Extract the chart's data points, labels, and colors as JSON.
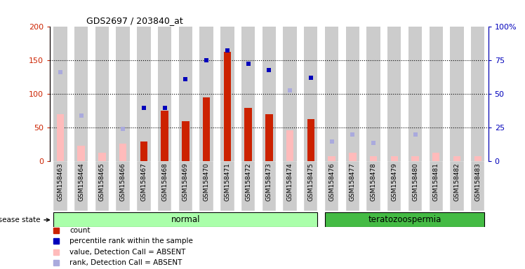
{
  "title": "GDS2697 / 203840_at",
  "samples": [
    "GSM158463",
    "GSM158464",
    "GSM158465",
    "GSM158466",
    "GSM158467",
    "GSM158468",
    "GSM158469",
    "GSM158470",
    "GSM158471",
    "GSM158472",
    "GSM158473",
    "GSM158474",
    "GSM158475",
    "GSM158476",
    "GSM158477",
    "GSM158478",
    "GSM158479",
    "GSM158480",
    "GSM158481",
    "GSM158482",
    "GSM158483"
  ],
  "count": [
    null,
    null,
    null,
    null,
    30,
    75,
    60,
    95,
    163,
    80,
    70,
    null,
    63,
    null,
    null,
    null,
    null,
    null,
    null,
    null,
    null
  ],
  "value_absent": [
    70,
    23,
    13,
    26,
    null,
    null,
    null,
    null,
    null,
    null,
    null,
    46,
    null,
    8,
    13,
    8,
    8,
    8,
    13,
    8,
    8
  ],
  "rank_present": [
    null,
    null,
    null,
    null,
    80,
    80,
    122,
    150,
    165,
    145,
    136,
    null,
    124,
    null,
    null,
    null,
    null,
    null,
    null,
    null,
    null
  ],
  "rank_absent": [
    133,
    68,
    null,
    48,
    null,
    null,
    null,
    null,
    null,
    null,
    null,
    106,
    null,
    30,
    40,
    28,
    null,
    40,
    null,
    null,
    null
  ],
  "disease_state": [
    "normal",
    "normal",
    "normal",
    "normal",
    "normal",
    "normal",
    "normal",
    "normal",
    "normal",
    "normal",
    "normal",
    "normal",
    "normal",
    "teratozoospermia",
    "teratozoospermia",
    "teratozoospermia",
    "teratozoospermia",
    "teratozoospermia",
    "teratozoospermia",
    "teratozoospermia",
    "teratozoospermia"
  ],
  "ylim_left": [
    0,
    200
  ],
  "ylim_right": [
    0,
    100
  ],
  "yticks_left": [
    0,
    50,
    100,
    150,
    200
  ],
  "yticks_right": [
    0,
    25,
    50,
    75,
    100
  ],
  "color_count": "#cc2200",
  "color_rank_present": "#0000bb",
  "color_value_absent": "#ffbbbb",
  "color_rank_absent": "#aaaadd",
  "color_normal_bg": "#aaffaa",
  "color_terato_bg": "#44bb44",
  "bar_bg_color": "#cccccc",
  "left_axis_color": "#cc2200",
  "right_axis_color": "#0000bb",
  "legend_labels": [
    "count",
    "percentile rank within the sample",
    "value, Detection Call = ABSENT",
    "rank, Detection Call = ABSENT"
  ]
}
